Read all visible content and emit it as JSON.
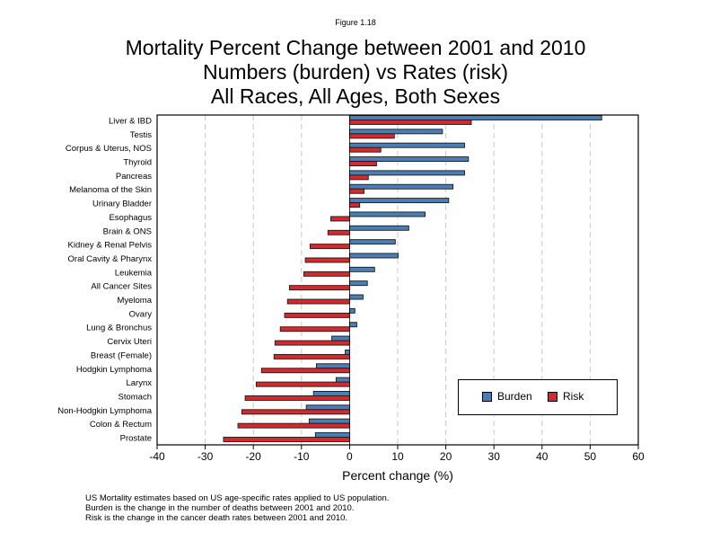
{
  "figure_label": "Figure 1.18",
  "notes": [
    "US Mortality estimates based on US age-specific rates applied to US population.",
    "Burden is the change in the number of deaths between 2001 and 2010.",
    "Risk is the change in the cancer death rates between 2001 and 2010."
  ],
  "chart_data": {
    "type": "bar",
    "orientation": "horizontal",
    "title": "Mortality Percent Change between 2001 and 2010",
    "subtitle": [
      "Numbers (burden) vs Rates (risk)",
      "All Races, All Ages, Both Sexes"
    ],
    "xlabel": "Percent change (%)",
    "ylabel": "",
    "xlim": [
      -40,
      60
    ],
    "xticks": [
      -40,
      -30,
      -20,
      -10,
      0,
      10,
      20,
      30,
      40,
      50,
      60
    ],
    "grid": "vertical dashed",
    "legend_position": "bottom-right",
    "categories": [
      "Liver & IBD",
      "Testis",
      "Corpus & Uterus, NOS",
      "Thyroid",
      "Pancreas",
      "Melanoma of the Skin",
      "Urinary Bladder",
      "Esophagus",
      "Brain & ONS",
      "Kidney & Renal Pelvis",
      "Oral Cavity & Pharynx",
      "Leukemia",
      "All Cancer Sites",
      "Myeloma",
      "Ovary",
      "Lung & Bronchus",
      "Cervix Uteri",
      "Breast (Female)",
      "Hodgkin Lymphoma",
      "Larynx",
      "Stomach",
      "Non-Hodgkin Lymphoma",
      "Colon & Rectum",
      "Prostate"
    ],
    "series": [
      {
        "name": "Burden",
        "color": "#4a7eb4",
        "values": [
          52.4,
          19.3,
          23.9,
          24.7,
          23.9,
          21.5,
          20.6,
          15.7,
          12.3,
          9.5,
          10.1,
          5.2,
          3.7,
          2.8,
          1.1,
          1.5,
          -3.7,
          -0.9,
          -6.9,
          -2.8,
          -7.5,
          -9.0,
          -8.4,
          -7.1
        ]
      },
      {
        "name": "Risk",
        "color": "#d42a2e",
        "values": [
          25.3,
          9.3,
          6.5,
          5.6,
          3.9,
          3.0,
          2.1,
          -3.9,
          -4.5,
          -8.2,
          -9.2,
          -9.5,
          -12.5,
          -12.9,
          -13.5,
          -14.4,
          -15.5,
          -15.7,
          -18.3,
          -19.4,
          -21.7,
          -22.4,
          -23.2,
          -26.2
        ]
      }
    ]
  }
}
